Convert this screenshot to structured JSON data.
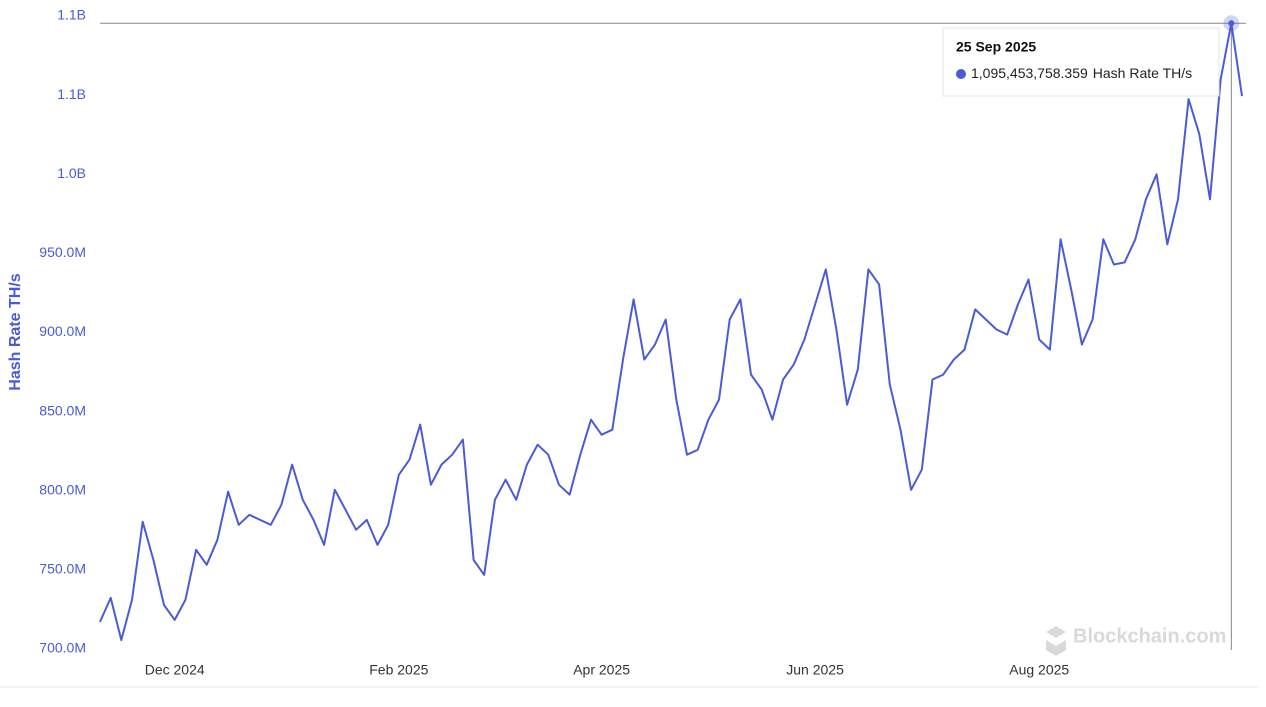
{
  "chart_data": {
    "type": "line",
    "y_label": "Hash Rate TH/s",
    "watermark": "Blockchain.com",
    "categories": [
      null,
      null,
      null,
      null,
      null,
      null,
      null,
      "Dec 2024",
      null,
      null,
      null,
      null,
      null,
      null,
      null,
      null,
      null,
      null,
      null,
      null,
      null,
      null,
      null,
      null,
      null,
      null,
      null,
      null,
      "Feb 2025",
      null,
      null,
      null,
      null,
      null,
      null,
      null,
      null,
      null,
      null,
      null,
      null,
      null,
      null,
      null,
      null,
      null,
      null,
      "Apr 2025",
      null,
      null,
      null,
      null,
      null,
      null,
      null,
      null,
      null,
      null,
      null,
      null,
      null,
      null,
      null,
      null,
      null,
      null,
      null,
      "Jun 2025",
      null,
      null,
      null,
      null,
      null,
      null,
      null,
      null,
      null,
      null,
      null,
      null,
      null,
      null,
      null,
      null,
      null,
      null,
      null,
      null,
      "Aug 2025",
      null,
      null,
      null,
      null,
      null,
      null,
      null,
      null,
      null,
      null,
      null,
      null,
      null,
      null,
      null,
      null,
      null,
      "25 Sep 2025",
      null
    ],
    "series": [
      {
        "name": "Hash Rate TH/s",
        "color": "#4a5bd6",
        "values": [
          717100000,
          732300000,
          705700000,
          731000000,
          780400000,
          756300000,
          727800000,
          718400000,
          731000000,
          762700000,
          753200000,
          769000000,
          799400000,
          778500000,
          784800000,
          781600000,
          778500000,
          791100000,
          816500000,
          794300000,
          781600000,
          765800000,
          800600000,
          788000000,
          775300000,
          781600000,
          765800000,
          778500000,
          810100000,
          819600000,
          841800000,
          803800000,
          816500000,
          822800000,
          832300000,
          756300000,
          746800000,
          794300000,
          807000000,
          794300000,
          816500000,
          829100000,
          822800000,
          803800000,
          797500000,
          822800000,
          844900000,
          835400000,
          838600000,
          882900000,
          920900000,
          882900000,
          892400000,
          908200000,
          857600000,
          822800000,
          825900000,
          844900000,
          857600000,
          908200000,
          920900000,
          873400000,
          863900000,
          844900000,
          870300000,
          879700000,
          895600000,
          917700000,
          939900000,
          901900000,
          854400000,
          876600000,
          939900000,
          930400000,
          867100000,
          838600000,
          800600000,
          813300000,
          870300000,
          873400000,
          882900000,
          889200000,
          914600000,
          908200000,
          901900000,
          898700000,
          917700000,
          933500000,
          895600000,
          889200000,
          958900000,
          927200000,
          892400000,
          908200000,
          958900000,
          943000000,
          944300000,
          958900000,
          984200000,
          1000000000,
          955700000,
          984200000,
          1047500000,
          1025300000,
          984200000,
          1060100000,
          1095453758.359,
          1049400000
        ],
        "value_labels": [
          null,
          null,
          null,
          null,
          null,
          null,
          null,
          null,
          null,
          null,
          null,
          null,
          null,
          null,
          null,
          null,
          null,
          null,
          null,
          null,
          null,
          null,
          null,
          null,
          null,
          null,
          null,
          null,
          null,
          null,
          null,
          null,
          null,
          null,
          null,
          null,
          null,
          null,
          null,
          null,
          null,
          null,
          null,
          null,
          null,
          null,
          null,
          null,
          null,
          null,
          null,
          null,
          null,
          null,
          null,
          null,
          null,
          null,
          null,
          null,
          null,
          null,
          null,
          null,
          null,
          null,
          null,
          null,
          null,
          null,
          null,
          null,
          null,
          null,
          null,
          null,
          null,
          null,
          null,
          null,
          null,
          null,
          null,
          null,
          null,
          null,
          null,
          null,
          null,
          null,
          null,
          null,
          null,
          null,
          null,
          null,
          null,
          null,
          null,
          null,
          null,
          null,
          null,
          null,
          null,
          null,
          "1,095,453,758.359",
          null
        ]
      }
    ],
    "ylim": [
      700000000,
      1100000000
    ],
    "yticks": [
      {
        "value": 700000000,
        "label": "700.0M"
      },
      {
        "value": 750000000,
        "label": "750.0M"
      },
      {
        "value": 800000000,
        "label": "800.0M"
      },
      {
        "value": 850000000,
        "label": "850.0M"
      },
      {
        "value": 900000000,
        "label": "900.0M"
      },
      {
        "value": 950000000,
        "label": "950.0M"
      },
      {
        "value": 1000000000,
        "label": "1.0B"
      },
      {
        "value": 1050000000,
        "label": "1.1B"
      },
      {
        "value": 1100000000,
        "label": "1.1B"
      }
    ],
    "grid": false
  }
}
